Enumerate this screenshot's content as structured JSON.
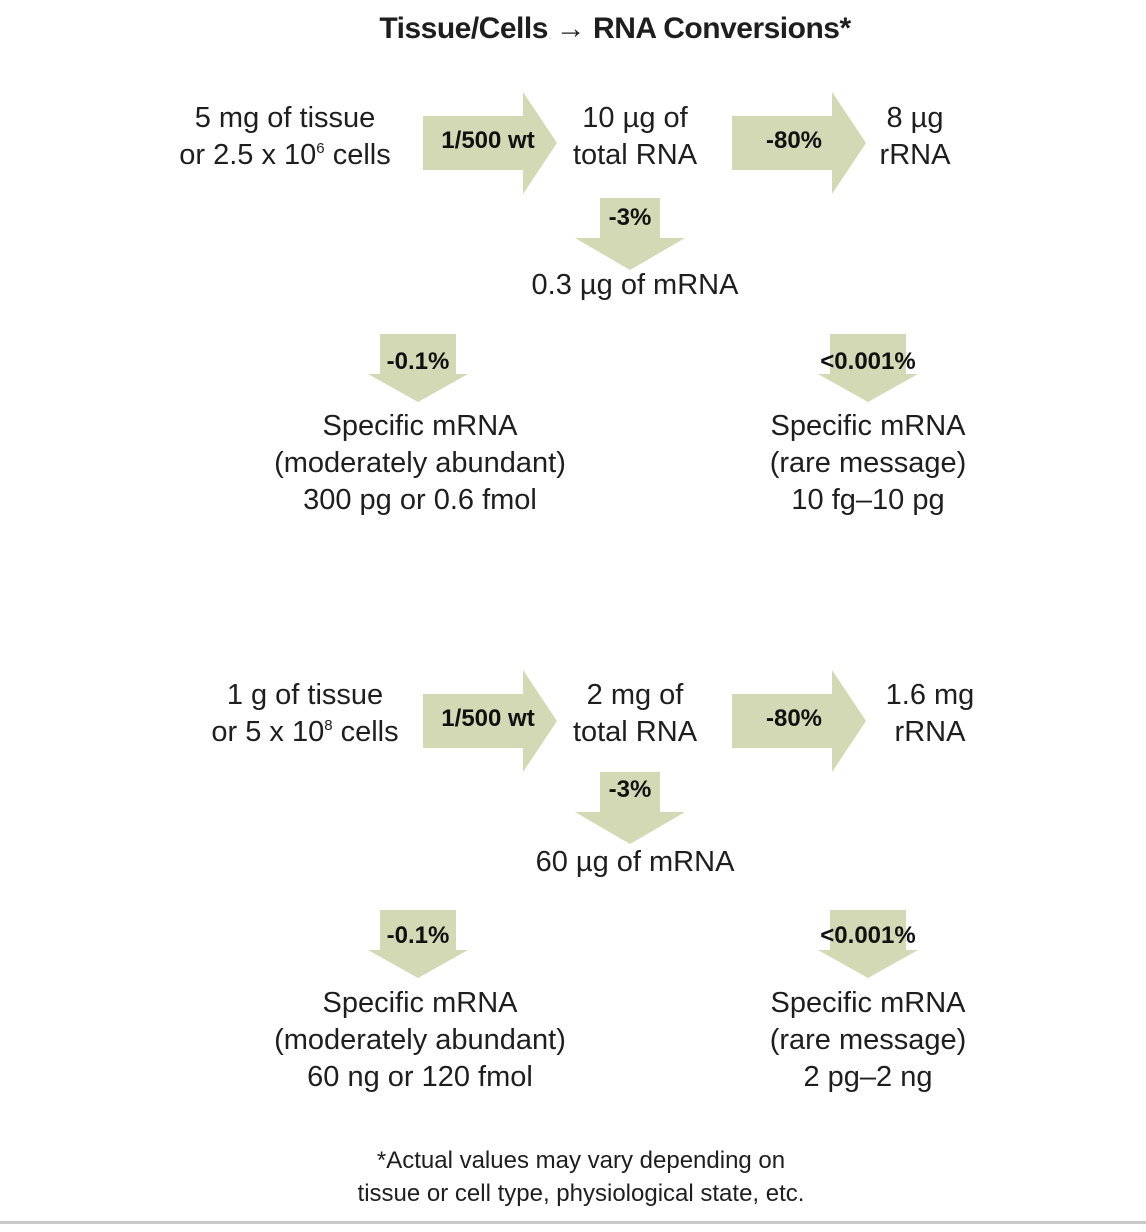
{
  "title": "Tissue/Cells → RNA Conversions*",
  "panels": [
    {
      "source": {
        "line1": "5 mg of tissue",
        "line2_pre": "or 2.5 x 10",
        "line2_sup": "6",
        "line2_post": " cells"
      },
      "ratio_label": "1/500 wt",
      "total_rna": {
        "line1": "10 µg of",
        "line2": "total RNA"
      },
      "rrna_label": "-80%",
      "rrna": {
        "line1": "8 µg",
        "line2": "rRNA"
      },
      "mrna_label": "-3%",
      "mrna": "0.3 µg of mRNA",
      "abundant_label": "-0.1%",
      "abundant": {
        "line1": "Specific mRNA",
        "line2": "(moderately abundant)",
        "line3": "300 pg or 0.6 fmol"
      },
      "rare_label": "<0.001%",
      "rare": {
        "line1": "Specific mRNA",
        "line2": "(rare message)",
        "line3": "10 fg–10 pg"
      }
    },
    {
      "source": {
        "line1": "1 g of tissue",
        "line2_pre": "or 5 x 10",
        "line2_sup": "8",
        "line2_post": " cells"
      },
      "ratio_label": "1/500 wt",
      "total_rna": {
        "line1": "2 mg of",
        "line2": "total RNA"
      },
      "rrna_label": "-80%",
      "rrna": {
        "line1": "1.6 mg",
        "line2": "rRNA"
      },
      "mrna_label": "-3%",
      "mrna": "60 µg of mRNA",
      "abundant_label": "-0.1%",
      "abundant": {
        "line1": "Specific mRNA",
        "line2": "(moderately abundant)",
        "line3": "60 ng or 120 fmol"
      },
      "rare_label": "<0.001%",
      "rare": {
        "line1": "Specific mRNA",
        "line2": "(rare message)",
        "line3": "2 pg–2 ng"
      }
    }
  ],
  "footer": {
    "line1": "*Actual values may vary depending on",
    "line2": "tissue or cell type, physiological state, etc."
  },
  "colors": {
    "arrow_fill": "#d3d8b5",
    "text": "#1e1e1e"
  }
}
